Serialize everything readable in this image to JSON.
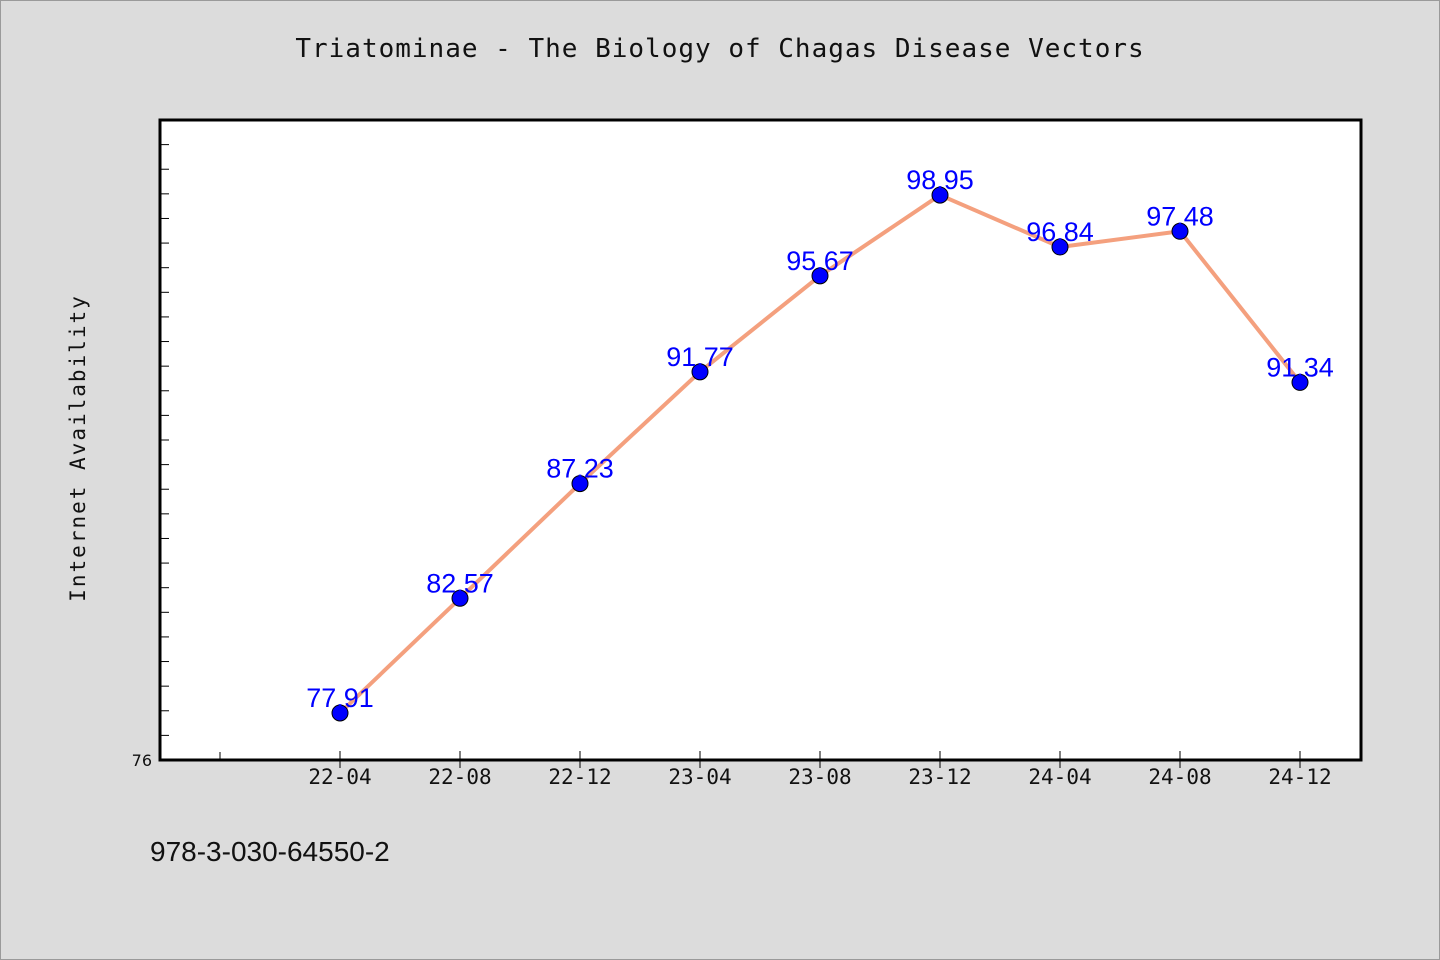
{
  "chart_data": {
    "type": "line",
    "title": "Triatominae - The Biology of Chagas Disease Vectors",
    "xlabel": "",
    "ylabel": "Internet Availability",
    "categories": [
      "22-04",
      "22-08",
      "22-12",
      "23-04",
      "23-08",
      "23-12",
      "24-04",
      "24-08",
      "24-12"
    ],
    "series": [
      {
        "values": [
          77.91,
          82.57,
          87.23,
          91.77,
          95.67,
          98.95,
          96.84,
          97.48,
          91.34
        ],
        "data_labels": [
          "77.91",
          "82.57",
          "87.23",
          "91.77",
          "95.67",
          "98.95",
          "96.84",
          "97.48",
          "91.34"
        ]
      }
    ],
    "ylim": [
      76,
      102
    ],
    "y_tick_labels": [
      "76"
    ],
    "grid": false,
    "legend": "none",
    "colors": {
      "line": "#f4a07e",
      "marker": "#0000ff",
      "data_label": "#0000ff",
      "plot_background": "#ffffff",
      "page_background": "#dcdcdc"
    }
  },
  "footer": {
    "code": "978-3-030-64550-2"
  }
}
